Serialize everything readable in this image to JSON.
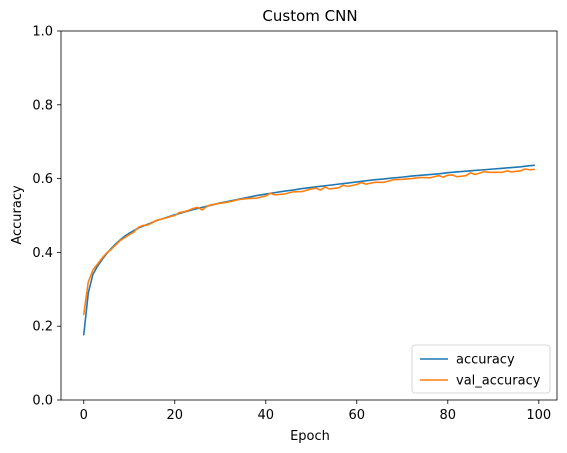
{
  "chart_data": {
    "type": "line",
    "title": "Custom CNN",
    "xlabel": "Epoch",
    "ylabel": "Accuracy",
    "xlim": [
      -5,
      104
    ],
    "ylim": [
      0,
      1
    ],
    "xticks": [
      0,
      20,
      40,
      60,
      80,
      100
    ],
    "yticks": [
      0.0,
      0.2,
      0.4,
      0.6,
      0.8,
      1.0
    ],
    "xtick_labels": [
      "0",
      "20",
      "40",
      "60",
      "80",
      "100"
    ],
    "ytick_labels": [
      "0.0",
      "0.2",
      "0.4",
      "0.6",
      "0.8",
      "1.0"
    ],
    "grid": false,
    "legend_position": "lower-right",
    "series": [
      {
        "name": "accuracy",
        "color": "#1f77b4",
        "x": [
          0,
          1,
          2,
          3,
          4,
          5,
          6,
          7,
          8,
          9,
          10,
          12,
          14,
          16,
          18,
          20,
          22,
          24,
          26,
          28,
          30,
          32,
          34,
          36,
          38,
          40,
          42,
          44,
          46,
          48,
          50,
          52,
          54,
          56,
          58,
          60,
          62,
          64,
          66,
          68,
          70,
          72,
          74,
          76,
          78,
          80,
          82,
          84,
          86,
          88,
          90,
          92,
          94,
          96,
          98,
          99
        ],
        "y": [
          0.177,
          0.29,
          0.34,
          0.362,
          0.38,
          0.396,
          0.41,
          0.423,
          0.434,
          0.444,
          0.452,
          0.466,
          0.476,
          0.486,
          0.494,
          0.502,
          0.509,
          0.516,
          0.522,
          0.528,
          0.534,
          0.539,
          0.544,
          0.549,
          0.554,
          0.558,
          0.562,
          0.566,
          0.569,
          0.573,
          0.576,
          0.579,
          0.582,
          0.585,
          0.588,
          0.591,
          0.594,
          0.597,
          0.599,
          0.602,
          0.604,
          0.607,
          0.609,
          0.611,
          0.613,
          0.616,
          0.618,
          0.62,
          0.622,
          0.624,
          0.626,
          0.628,
          0.63,
          0.632,
          0.635,
          0.636
        ]
      },
      {
        "name": "val_accuracy",
        "color": "#ff7f0e",
        "x": [
          0,
          1,
          2,
          3,
          4,
          5,
          6,
          7,
          8,
          9,
          10,
          11,
          12,
          13,
          14,
          15,
          16,
          17,
          18,
          19,
          20,
          21,
          22,
          23,
          24,
          25,
          26,
          27,
          28,
          30,
          32,
          34,
          36,
          38,
          40,
          41,
          42,
          44,
          46,
          48,
          50,
          51,
          52,
          53,
          54,
          56,
          57,
          58,
          60,
          61,
          62,
          64,
          66,
          68,
          70,
          72,
          74,
          76,
          78,
          79,
          80,
          81,
          82,
          84,
          85,
          86,
          88,
          89,
          90,
          92,
          93,
          94,
          96,
          97,
          98,
          99
        ],
        "y": [
          0.232,
          0.32,
          0.352,
          0.368,
          0.384,
          0.398,
          0.408,
          0.42,
          0.432,
          0.44,
          0.448,
          0.455,
          0.468,
          0.473,
          0.474,
          0.48,
          0.487,
          0.49,
          0.493,
          0.497,
          0.5,
          0.508,
          0.51,
          0.514,
          0.519,
          0.522,
          0.515,
          0.524,
          0.529,
          0.533,
          0.537,
          0.543,
          0.546,
          0.547,
          0.553,
          0.56,
          0.556,
          0.558,
          0.564,
          0.565,
          0.572,
          0.574,
          0.569,
          0.577,
          0.572,
          0.575,
          0.582,
          0.579,
          0.584,
          0.589,
          0.585,
          0.59,
          0.59,
          0.597,
          0.598,
          0.6,
          0.603,
          0.602,
          0.608,
          0.604,
          0.609,
          0.61,
          0.605,
          0.608,
          0.616,
          0.611,
          0.619,
          0.617,
          0.617,
          0.617,
          0.621,
          0.618,
          0.621,
          0.626,
          0.624,
          0.625
        ]
      }
    ]
  }
}
